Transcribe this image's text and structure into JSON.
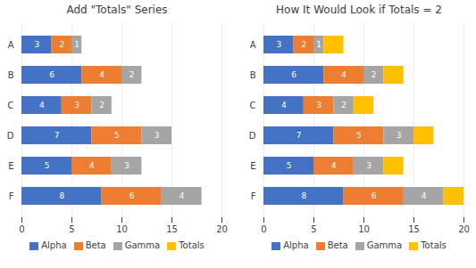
{
  "chart_data": [
    {
      "type": "bar",
      "title": "Add \"Totals\" Series",
      "orientation": "horizontal",
      "stacked": true,
      "categories": [
        "A",
        "B",
        "C",
        "D",
        "E",
        "F"
      ],
      "series": [
        {
          "name": "Alpha",
          "color": "#4472C4",
          "values": [
            3,
            6,
            4,
            7,
            5,
            8
          ],
          "data_labels": true
        },
        {
          "name": "Beta",
          "color": "#ED7D31",
          "values": [
            2,
            4,
            3,
            5,
            4,
            6
          ],
          "data_labels": true
        },
        {
          "name": "Gamma",
          "color": "#A5A5A5",
          "values": [
            1,
            2,
            2,
            3,
            3,
            4
          ],
          "data_labels": true
        },
        {
          "name": "Totals",
          "color": "#FFC000",
          "values": [
            null,
            null,
            null,
            null,
            null,
            null
          ],
          "data_labels": false
        }
      ],
      "xlim": [
        0,
        20
      ],
      "xticks": [
        0,
        5,
        10,
        15,
        20
      ],
      "grid": true,
      "legend": "bottom"
    },
    {
      "type": "bar",
      "title": "How It Would Look if Totals = 2",
      "orientation": "horizontal",
      "stacked": true,
      "categories": [
        "A",
        "B",
        "C",
        "D",
        "E",
        "F"
      ],
      "series": [
        {
          "name": "Alpha",
          "color": "#4472C4",
          "values": [
            3,
            6,
            4,
            7,
            5,
            8
          ],
          "data_labels": true
        },
        {
          "name": "Beta",
          "color": "#ED7D31",
          "values": [
            2,
            4,
            3,
            5,
            4,
            6
          ],
          "data_labels": true
        },
        {
          "name": "Gamma",
          "color": "#A5A5A5",
          "values": [
            1,
            2,
            2,
            3,
            3,
            4
          ],
          "data_labels": true
        },
        {
          "name": "Totals",
          "color": "#FFC000",
          "values": [
            2,
            2,
            2,
            2,
            2,
            2
          ],
          "data_labels": false
        }
      ],
      "xlim": [
        0,
        20
      ],
      "xticks": [
        0,
        5,
        10,
        15,
        20
      ],
      "grid": true,
      "legend": "bottom"
    }
  ]
}
